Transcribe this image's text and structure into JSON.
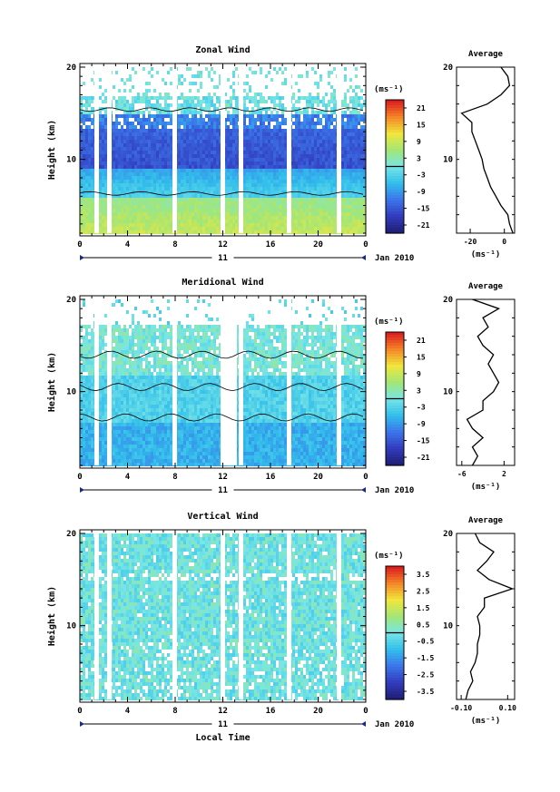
{
  "chart_data": [
    {
      "type": "heatmap",
      "title": "Zonal Wind",
      "ylabel": "Height (km)",
      "xlim": [
        0,
        24
      ],
      "ylim": [
        2,
        20
      ],
      "x_ticks": [
        "0",
        "4",
        "8",
        "12",
        "16",
        "20",
        "0"
      ],
      "y_ticks": [
        "20",
        "10"
      ],
      "date_marker": "11",
      "date_label": "Jan 2010",
      "colorbar": {
        "unit": "(ms⁻¹)",
        "ticks": [
          "21",
          "15",
          "9",
          "3",
          "-3",
          "-9",
          "-15",
          "-21"
        ],
        "range": [
          -24,
          24
        ]
      },
      "profile": {
        "title": "Average",
        "xlabel": "(ms⁻¹)",
        "x_ticks": [
          "-20",
          "0"
        ],
        "xlim": [
          -28,
          6
        ],
        "heights": [
          2,
          3,
          4,
          5,
          6,
          7,
          8,
          9,
          10,
          11,
          12,
          13,
          14,
          15,
          16,
          17,
          18,
          19,
          20
        ],
        "values": [
          5,
          3,
          2,
          -2,
          -5,
          -8,
          -10,
          -12,
          -13,
          -15,
          -17,
          -19,
          -19,
          -25,
          -10,
          -2,
          3,
          2,
          -2
        ]
      }
    },
    {
      "type": "heatmap",
      "title": "Meridional Wind",
      "ylabel": "Height (km)",
      "xlim": [
        0,
        24
      ],
      "ylim": [
        2,
        20
      ],
      "x_ticks": [
        "0",
        "4",
        "8",
        "12",
        "16",
        "20",
        "0"
      ],
      "y_ticks": [
        "20",
        "10"
      ],
      "date_marker": "11",
      "date_label": "Jan 2010",
      "colorbar": {
        "unit": "(ms⁻¹)",
        "ticks": [
          "21",
          "15",
          "9",
          "3",
          "-3",
          "-9",
          "-15",
          "-21"
        ],
        "range": [
          -24,
          24
        ]
      },
      "profile": {
        "title": "Average",
        "xlabel": "(ms⁻¹)",
        "x_ticks": [
          "-6",
          "2"
        ],
        "xlim": [
          -7,
          4
        ],
        "heights": [
          2,
          3,
          4,
          5,
          6,
          7,
          8,
          9,
          10,
          11,
          12,
          13,
          14,
          15,
          16,
          17,
          18,
          19,
          20
        ],
        "values": [
          -4,
          -3,
          -4,
          -2,
          -4,
          -5,
          -2,
          -2,
          0,
          1,
          0,
          -1,
          0,
          -2,
          -3,
          -1,
          -2,
          1,
          -4
        ]
      }
    },
    {
      "type": "heatmap",
      "title": "Vertical Wind",
      "xlabel": "Local Time",
      "ylabel": "Height (km)",
      "xlim": [
        0,
        24
      ],
      "ylim": [
        2,
        20
      ],
      "x_ticks": [
        "0",
        "4",
        "8",
        "12",
        "16",
        "20",
        "0"
      ],
      "y_ticks": [
        "20",
        "10"
      ],
      "date_marker": "11",
      "date_label": "Jan 2010",
      "colorbar": {
        "unit": "(ms⁻¹)",
        "ticks": [
          "3.5",
          "2.5",
          "1.5",
          "0.5",
          "-0.5",
          "-1.5",
          "-2.5",
          "-3.5"
        ],
        "range": [
          -4,
          4
        ]
      },
      "profile": {
        "title": "Average",
        "xlabel": "(ms⁻¹)",
        "x_ticks": [
          "-0.10",
          "0.10"
        ],
        "xlim": [
          -0.12,
          0.13
        ],
        "heights": [
          2,
          3,
          4,
          5,
          6,
          7,
          8,
          9,
          10,
          11,
          12,
          13,
          14,
          15,
          16,
          17,
          18,
          19,
          20
        ],
        "values": [
          -0.08,
          -0.07,
          -0.05,
          -0.06,
          -0.04,
          -0.03,
          -0.03,
          -0.02,
          -0.02,
          -0.03,
          0.0,
          0.0,
          0.12,
          0.02,
          -0.03,
          0.01,
          0.04,
          -0.02,
          -0.04
        ]
      }
    }
  ]
}
